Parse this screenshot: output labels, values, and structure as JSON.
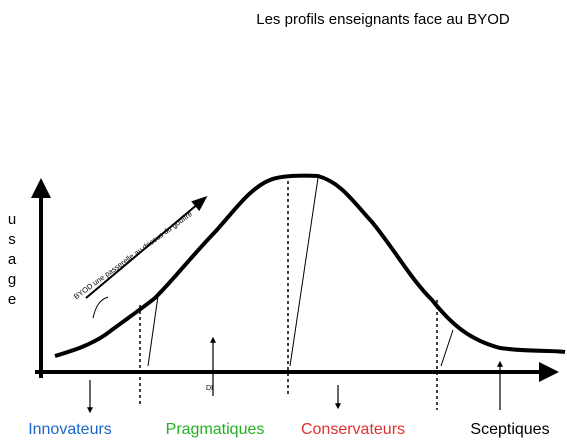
{
  "title": "Les profils enseignants face au BYOD",
  "y_label": [
    "u",
    "s",
    "a",
    "g",
    "e"
  ],
  "annotation": "BYOD une passerelle au dessus du gouffre",
  "marker": "DI",
  "profiles": [
    "Innovateurs",
    "Pragmatiques",
    "Conservateurs",
    "Sceptiques"
  ]
}
